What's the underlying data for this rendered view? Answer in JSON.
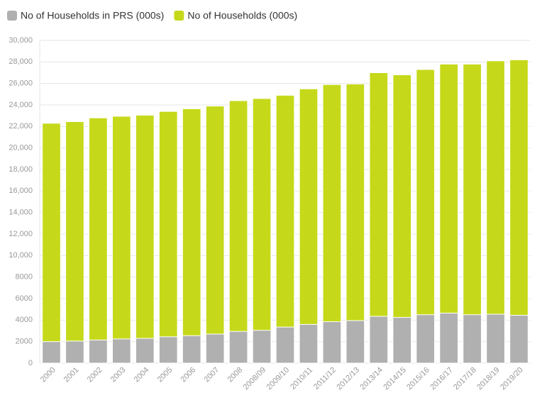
{
  "chart_data": {
    "type": "bar",
    "categories": [
      "2000",
      "2001",
      "2002",
      "2003",
      "2004",
      "2005",
      "2006",
      "2007",
      "2008",
      "2008/09",
      "2009/10",
      "2010/11",
      "2011/12",
      "2012/13",
      "2013/14",
      "2014/15",
      "2015/16",
      "2016/17",
      "2017/18",
      "2018/19",
      "2019/20"
    ],
    "series": [
      {
        "name": "No of Households in PRS (000s)",
        "color": "#b0b0b0",
        "values": [
          2000,
          2050,
          2150,
          2250,
          2300,
          2450,
          2550,
          2700,
          2950,
          3050,
          3350,
          3600,
          3850,
          3950,
          4350,
          4250,
          4500,
          4650,
          4500,
          4550,
          4450
        ]
      },
      {
        "name": "No of Households (000s)",
        "color": "#c5d91a",
        "values": [
          22300,
          22450,
          22800,
          22950,
          23050,
          23400,
          23650,
          23900,
          24400,
          24600,
          24900,
          25500,
          25900,
          25950,
          27000,
          26800,
          27300,
          27800,
          27800,
          28100,
          28200
        ]
      }
    ],
    "ylim": [
      0,
      30000
    ],
    "yticks": [
      0,
      2000,
      4000,
      6000,
      8000,
      {
        "value": 10000,
        "label": "10,000"
      },
      {
        "value": 12000,
        "label": "12,000"
      },
      {
        "value": 14000,
        "label": "14,000"
      },
      {
        "value": 16000,
        "label": "16,000"
      },
      {
        "value": 18000,
        "label": "18,000"
      },
      {
        "value": 20000,
        "label": "20,000"
      },
      {
        "value": 22000,
        "label": "22,000"
      },
      {
        "value": 24000,
        "label": "24,000"
      },
      {
        "value": 26000,
        "label": "26,000"
      },
      {
        "value": 28000,
        "label": "28,000"
      },
      {
        "value": 30000,
        "label": "30,000"
      }
    ],
    "grid": true
  }
}
